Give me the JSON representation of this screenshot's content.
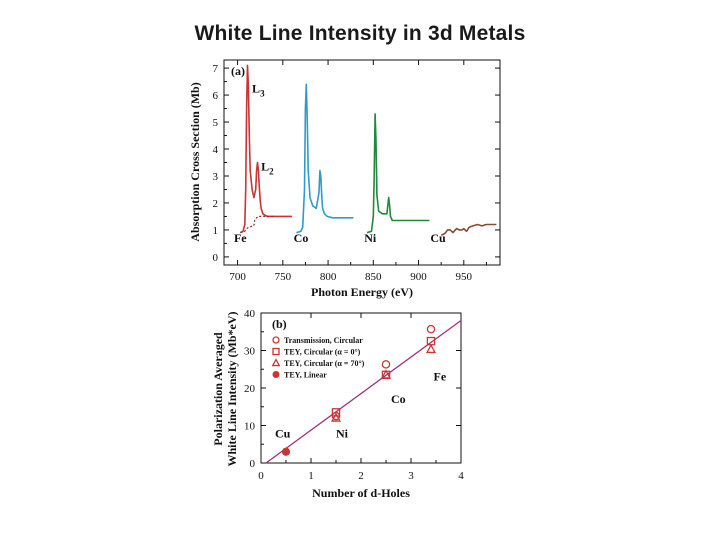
{
  "slide": {
    "title": "White Line Intensity in 3d Metals"
  },
  "chart_data": [
    {
      "type": "line",
      "panel_label": "(a)",
      "xlabel": "Photon Energy (eV)",
      "ylabel": "Absorption Cross Section (Mb)",
      "xlim": [
        685,
        990
      ],
      "ylim": [
        -0.3,
        7.3
      ],
      "xticks": [
        700,
        750,
        800,
        850,
        900,
        950
      ],
      "yticks": [
        0,
        1,
        2,
        3,
        4,
        5,
        6,
        7
      ],
      "colors": {
        "Fe": "#cc3333",
        "Co": "#2f9bcc",
        "Ni": "#1f8a3a",
        "Cu": "#8a4a3a",
        "step": "#8b2a1a"
      },
      "series": [
        {
          "name": "Fe",
          "x": [
            703,
            706,
            708,
            709,
            710,
            711,
            712,
            713,
            714,
            716,
            718,
            720,
            721,
            722,
            723,
            724,
            725,
            726,
            728,
            730,
            733,
            738,
            745,
            752,
            760
          ],
          "y": [
            0.9,
            0.95,
            1.2,
            2.5,
            5.5,
            7.1,
            6.3,
            4.5,
            3.2,
            2.5,
            2.2,
            2.5,
            3.2,
            3.5,
            3.2,
            2.6,
            2.1,
            1.8,
            1.6,
            1.55,
            1.5,
            1.5,
            1.5,
            1.5,
            1.5
          ]
        },
        {
          "name": "Co",
          "x": [
            765,
            770,
            772,
            774,
            775,
            776,
            777,
            778,
            780,
            783,
            787,
            790,
            791,
            792,
            793,
            794,
            796,
            799,
            805,
            815,
            828
          ],
          "y": [
            0.9,
            0.95,
            1.1,
            2.5,
            5.5,
            6.4,
            5.0,
            3.2,
            2.2,
            1.9,
            1.8,
            2.4,
            3.2,
            3.0,
            2.3,
            1.8,
            1.6,
            1.5,
            1.45,
            1.45,
            1.45
          ]
        },
        {
          "name": "Ni",
          "x": [
            843,
            848,
            850,
            851,
            852,
            853,
            854,
            856,
            860,
            865,
            866,
            867,
            868,
            869,
            871,
            875,
            885,
            900,
            912
          ],
          "y": [
            0.9,
            0.95,
            1.5,
            3.0,
            5.3,
            4.3,
            2.3,
            1.7,
            1.6,
            1.6,
            1.9,
            2.2,
            1.9,
            1.5,
            1.35,
            1.35,
            1.35,
            1.35,
            1.35
          ]
        },
        {
          "name": "Cu",
          "x": [
            925,
            928,
            930,
            932,
            935,
            938,
            942,
            945,
            948,
            950,
            953,
            956,
            960,
            965,
            970,
            975,
            980,
            986
          ],
          "y": [
            0.8,
            0.85,
            0.9,
            1.0,
            1.0,
            0.9,
            1.05,
            1.0,
            1.0,
            1.05,
            0.95,
            1.1,
            1.15,
            1.2,
            1.15,
            1.2,
            1.2,
            1.2
          ]
        }
      ],
      "step_function": {
        "name": "Fe edge step",
        "x": [
          703,
          708,
          709,
          712,
          718,
          719,
          723,
          740
        ],
        "y": [
          0.9,
          0.95,
          1.0,
          1.1,
          1.15,
          1.4,
          1.5,
          1.5
        ]
      },
      "annotations": [
        {
          "text": "L",
          "sub": "3",
          "x": 716,
          "y": 6.1
        },
        {
          "text": "L",
          "sub": "2",
          "x": 726,
          "y": 3.2
        },
        {
          "text": "Fe",
          "x": 696,
          "y": 0.55
        },
        {
          "text": "Co",
          "x": 762,
          "y": 0.55
        },
        {
          "text": "Ni",
          "x": 840,
          "y": 0.55
        },
        {
          "text": "Cu",
          "x": 913,
          "y": 0.55
        }
      ]
    },
    {
      "type": "scatter",
      "panel_label": "(b)",
      "xlabel": "Number of d-Holes",
      "ylabel_line1": "Polarization Averaged",
      "ylabel_line2": "White Line Intensity (Mb*eV)",
      "xlim": [
        0,
        4
      ],
      "ylim": [
        0,
        40
      ],
      "xticks": [
        0,
        1,
        2,
        3,
        4
      ],
      "yticks": [
        0,
        10,
        20,
        30,
        40
      ],
      "color": "#cc3333",
      "line_color": "#a0307a",
      "fit_line": {
        "x": [
          0.1,
          4.0
        ],
        "y": [
          0,
          38
        ]
      },
      "legend": [
        {
          "marker": "circle-open",
          "label": "Transmission, Circular"
        },
        {
          "marker": "square-open",
          "label": "TEY, Circular (α = 0°)"
        },
        {
          "marker": "triangle-open",
          "label": "TEY, Circular (α = 70°)"
        },
        {
          "marker": "circle-filled",
          "label": "TEY, Linear"
        }
      ],
      "series": [
        {
          "name": "Transmission, Circular",
          "marker": "circle-open",
          "x": [
            1.5,
            2.5,
            3.4
          ],
          "y": [
            12.5,
            26.3,
            35.7
          ]
        },
        {
          "name": "TEY, Circular (α = 0°)",
          "marker": "square-open",
          "x": [
            1.5,
            2.5,
            3.4
          ],
          "y": [
            13.5,
            23.5,
            32.5
          ]
        },
        {
          "name": "TEY, Circular (α = 70°)",
          "marker": "triangle-open",
          "x": [
            1.5,
            2.5,
            3.4
          ],
          "y": [
            12.0,
            23.5,
            30.3
          ]
        },
        {
          "name": "TEY, Linear",
          "marker": "circle-filled",
          "x": [
            0.5
          ],
          "y": [
            3.0
          ]
        }
      ],
      "point_labels": [
        {
          "text": "Cu",
          "x": 0.28,
          "y": 6.8
        },
        {
          "text": "Ni",
          "x": 1.5,
          "y": 6.8
        },
        {
          "text": "Co",
          "x": 2.6,
          "y": 16.0
        },
        {
          "text": "Fe",
          "x": 3.45,
          "y": 22.0
        }
      ]
    }
  ]
}
